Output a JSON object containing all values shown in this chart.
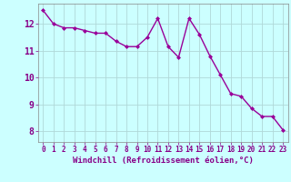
{
  "x": [
    0,
    1,
    2,
    3,
    4,
    5,
    6,
    7,
    8,
    9,
    10,
    11,
    12,
    13,
    14,
    15,
    16,
    17,
    18,
    19,
    20,
    21,
    22,
    23
  ],
  "y": [
    12.5,
    12.0,
    11.85,
    11.85,
    11.75,
    11.65,
    11.65,
    11.35,
    11.15,
    11.15,
    11.5,
    12.2,
    11.15,
    10.75,
    12.2,
    11.6,
    10.8,
    10.1,
    9.4,
    9.3,
    8.85,
    8.55,
    8.55,
    8.05
  ],
  "line_color": "#990099",
  "marker": "D",
  "marker_size": 2.0,
  "bg_color": "#ccffff",
  "grid_color": "#b0d8d8",
  "xlabel": "Windchill (Refroidissement éolien,°C)",
  "xlabel_fontsize": 6.5,
  "ylabel_ticks": [
    8,
    9,
    10,
    11,
    12
  ],
  "xtick_labels": [
    "0",
    "1",
    "2",
    "3",
    "4",
    "5",
    "6",
    "7",
    "8",
    "9",
    "10",
    "11",
    "12",
    "13",
    "14",
    "15",
    "16",
    "17",
    "18",
    "19",
    "20",
    "21",
    "22",
    "23"
  ],
  "ylim": [
    7.6,
    12.75
  ],
  "xlim": [
    -0.5,
    23.5
  ],
  "tick_color": "#880088",
  "tick_fontsize": 5.5,
  "ytick_fontsize": 7.0,
  "linewidth": 1.0,
  "spine_color": "#888888"
}
